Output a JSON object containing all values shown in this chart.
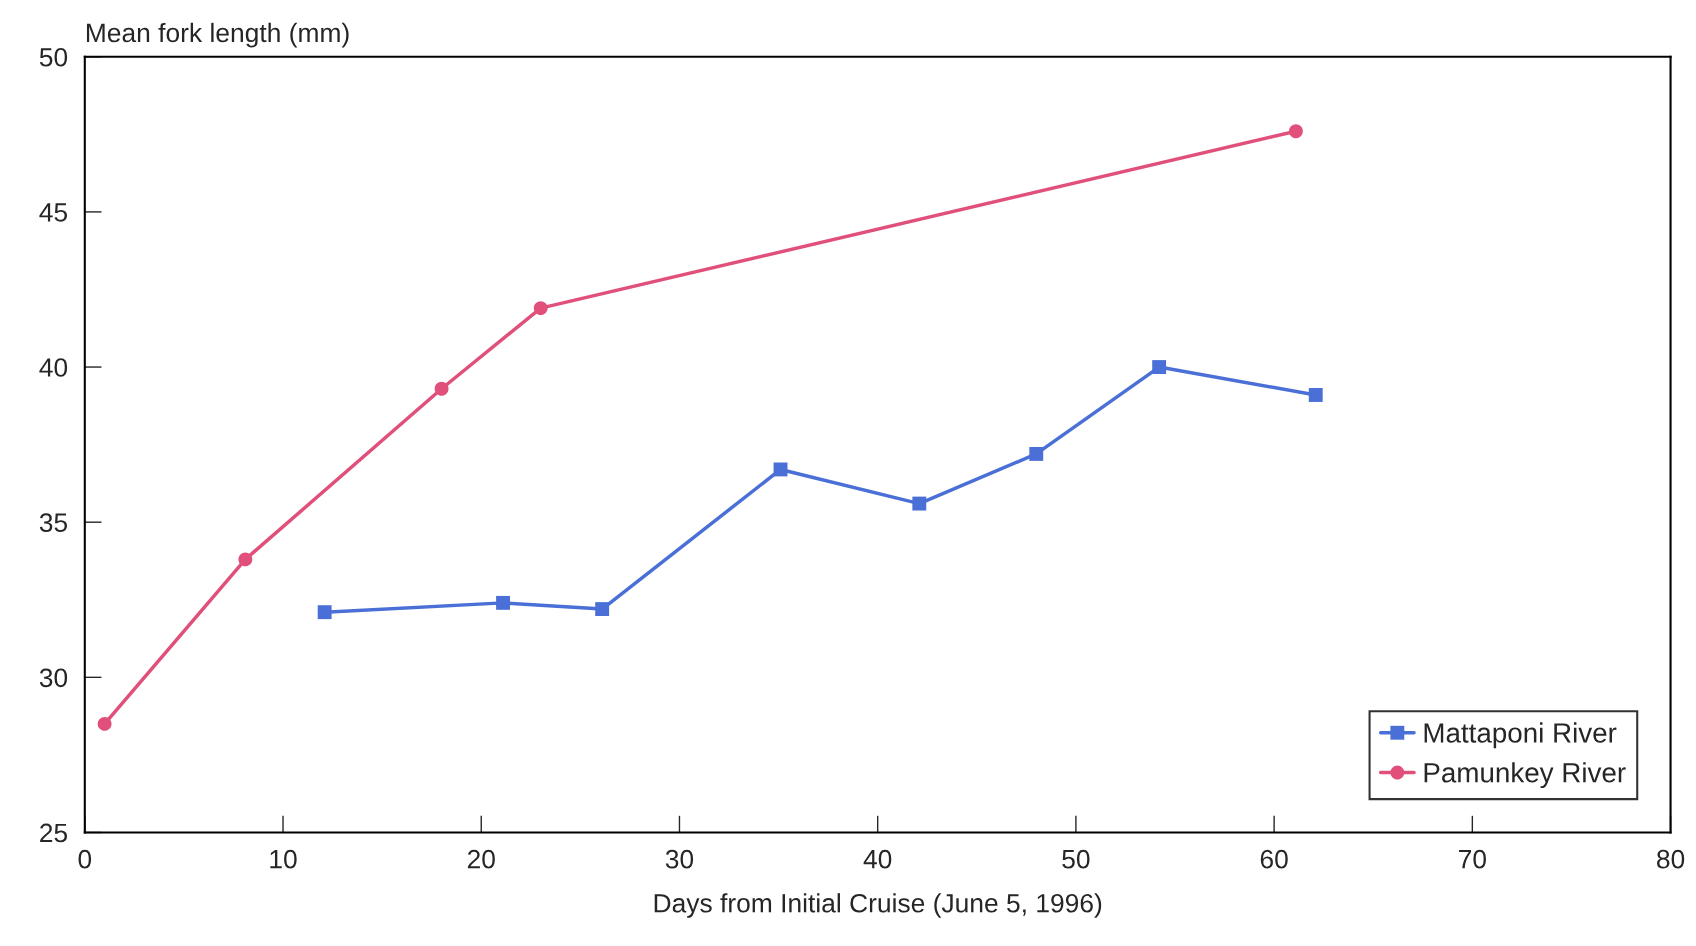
{
  "chart_data": {
    "type": "line",
    "ylabel": "Mean fork length (mm)",
    "xlabel": "Days from Initial Cruise (June 5, 1996)",
    "xlim": [
      0,
      80
    ],
    "xticks": [
      0,
      10,
      20,
      30,
      40,
      50,
      60,
      70,
      80
    ],
    "ylim": [
      25,
      50
    ],
    "yticks": [
      25,
      30,
      35,
      40,
      45,
      50
    ],
    "grid": false,
    "legend": "bottom right",
    "series": [
      {
        "name": "Mattaponi River",
        "color": "#4a6fd6",
        "marker": "square",
        "x": [
          12.1,
          21.1,
          26.1,
          35.1,
          42.1,
          48.0,
          54.2,
          62.1
        ],
        "values": [
          32.1,
          32.4,
          32.2,
          36.7,
          35.6,
          37.2,
          40.0,
          39.1
        ]
      },
      {
        "name": "Pamunkey River",
        "color": "#e0507a",
        "marker": "circle",
        "x": [
          1.0,
          8.1,
          18.0,
          23.0,
          61.1
        ],
        "values": [
          28.5,
          33.8,
          39.3,
          41.9,
          47.6
        ]
      }
    ]
  }
}
